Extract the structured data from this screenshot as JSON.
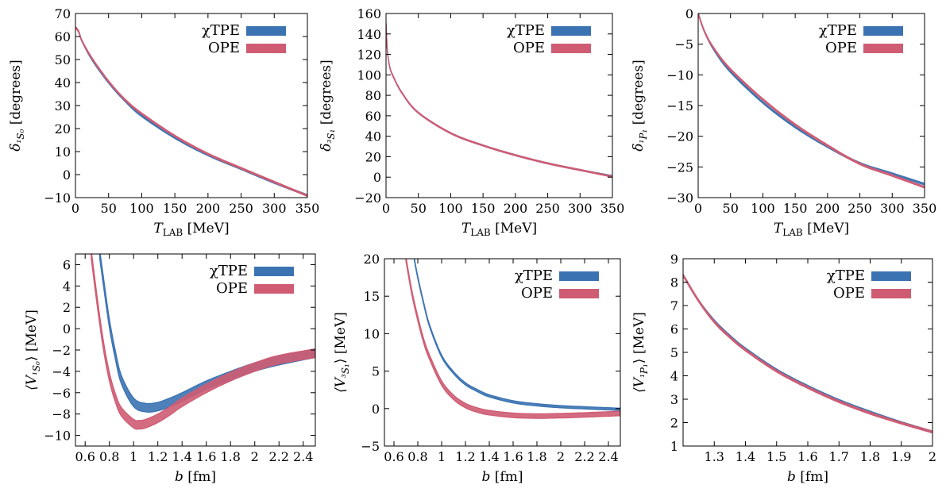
{
  "colors": {
    "chi_tpe": "#3b73b2",
    "ope": "#cf5c73"
  },
  "chart_data": [
    {
      "type": "line",
      "xlabel": "T_LAB [MeV]",
      "ylabel": "δ_{1S0} [degrees]",
      "xlim": [
        0,
        350
      ],
      "ylim": [
        -10,
        70
      ],
      "xticks": [
        0,
        50,
        100,
        150,
        200,
        250,
        300,
        350
      ],
      "xtick_labels": [
        "0",
        "50",
        "100",
        "150",
        "200",
        "250",
        "300",
        "350"
      ],
      "yticks": [
        -10,
        0,
        10,
        20,
        30,
        40,
        50,
        60,
        70
      ],
      "ytick_labels": [
        "−10",
        "0",
        "10",
        "20",
        "30",
        "40",
        "50",
        "60",
        "70"
      ],
      "legend": "top-right",
      "series": [
        {
          "name": "χTPE",
          "color": "chi_tpe",
          "x": [
            0,
            5,
            10,
            25,
            50,
            75,
            100,
            150,
            200,
            250,
            300,
            350
          ],
          "y": [
            64,
            62,
            58,
            50,
            40,
            32,
            25.5,
            16,
            8.5,
            2.5,
            -3.5,
            -9
          ],
          "band": 0.6
        },
        {
          "name": "OPE",
          "color": "ope",
          "x": [
            0,
            5,
            10,
            25,
            50,
            75,
            100,
            150,
            200,
            250,
            300,
            350
          ],
          "y": [
            64,
            62,
            58,
            50.5,
            40.5,
            32.5,
            26.5,
            16.8,
            9,
            2.8,
            -3.2,
            -9.2
          ],
          "band": 0.6
        }
      ]
    },
    {
      "type": "line",
      "xlabel": "T_LAB [MeV]",
      "ylabel": "δ_{3S1} [degrees]",
      "xlim": [
        0,
        350
      ],
      "ylim": [
        -20,
        160
      ],
      "xticks": [
        0,
        50,
        100,
        150,
        200,
        250,
        300,
        350
      ],
      "xtick_labels": [
        "0",
        "50",
        "100",
        "150",
        "200",
        "250",
        "300",
        "350"
      ],
      "yticks": [
        -20,
        0,
        20,
        40,
        60,
        80,
        100,
        120,
        140,
        160
      ],
      "ytick_labels": [
        "−20",
        "0",
        "20",
        "40",
        "60",
        "80",
        "100",
        "120",
        "140",
        "160"
      ],
      "legend": "top-right",
      "series": [
        {
          "name": "χTPE",
          "color": "chi_tpe",
          "x": [
            0,
            2,
            5,
            10,
            25,
            50,
            100,
            150,
            200,
            250,
            300,
            350
          ],
          "y": [
            150,
            125,
            110,
            100,
            82,
            63,
            43,
            31,
            21.5,
            13.5,
            7,
            1
          ],
          "band": 1
        },
        {
          "name": "OPE",
          "color": "ope",
          "x": [
            0,
            2,
            5,
            10,
            25,
            50,
            100,
            150,
            200,
            250,
            300,
            350
          ],
          "y": [
            150,
            125,
            110,
            100,
            82,
            63,
            43,
            31,
            21.5,
            13.5,
            7,
            0.5
          ],
          "band": 1
        }
      ]
    },
    {
      "type": "line",
      "xlabel": "T_LAB [MeV]",
      "ylabel": "δ_{1P1} [degrees]",
      "xlim": [
        0,
        350
      ],
      "ylim": [
        -30,
        0
      ],
      "xticks": [
        0,
        50,
        100,
        150,
        200,
        250,
        300,
        350
      ],
      "xtick_labels": [
        "0",
        "50",
        "100",
        "150",
        "200",
        "250",
        "300",
        "350"
      ],
      "yticks": [
        -30,
        -25,
        -20,
        -15,
        -10,
        -5,
        0
      ],
      "ytick_labels": [
        "−30",
        "−25",
        "−20",
        "−15",
        "−10",
        "−5",
        "0"
      ],
      "legend": "top-right",
      "series": [
        {
          "name": "χTPE",
          "color": "chi_tpe",
          "x": [
            0,
            10,
            25,
            50,
            100,
            150,
            200,
            250,
            300,
            350
          ],
          "y": [
            0,
            -3,
            -6,
            -9.5,
            -14.5,
            -18.5,
            -21.7,
            -24.4,
            -26.1,
            -27.8
          ],
          "band": 0.25
        },
        {
          "name": "OPE",
          "color": "ope",
          "x": [
            0,
            10,
            25,
            50,
            100,
            150,
            200,
            250,
            300,
            350
          ],
          "y": [
            0,
            -3,
            -5.8,
            -9.1,
            -14,
            -18.1,
            -21.5,
            -24.5,
            -26.4,
            -28.3
          ],
          "band": 0.25
        }
      ]
    },
    {
      "type": "line",
      "xlabel": "b [fm]",
      "ylabel": "⟨V_{1S0}⟩ [MeV]",
      "xlim": [
        0.52,
        2.5
      ],
      "ylim": [
        -11,
        7
      ],
      "xticks": [
        0.6,
        0.8,
        1,
        1.2,
        1.4,
        1.6,
        1.8,
        2,
        2.2,
        2.4
      ],
      "xtick_labels": [
        "0.6",
        "0.8",
        "1",
        "1.2",
        "1.4",
        "1.6",
        "1.8",
        "2",
        "2.2",
        "2.4"
      ],
      "yticks": [
        -10,
        -8,
        -6,
        -4,
        -2,
        0,
        2,
        4,
        6
      ],
      "ytick_labels": [
        "−10",
        "−8",
        "−6",
        "−4",
        "−2",
        "0",
        "2",
        "4",
        "6"
      ],
      "legend": "top-right",
      "series": [
        {
          "name": "χTPE",
          "color": "chi_tpe",
          "x": [
            0.72,
            0.75,
            0.8,
            0.85,
            0.9,
            1.0,
            1.1,
            1.2,
            1.3,
            1.4,
            1.6,
            1.8,
            2.0,
            2.2,
            2.5
          ],
          "y": [
            7,
            4.5,
            0.5,
            -2.5,
            -4.8,
            -6.9,
            -7.4,
            -7.3,
            -6.9,
            -6.4,
            -5.3,
            -4.4,
            -3.6,
            -3.0,
            -2.3
          ],
          "band": 0.8
        },
        {
          "name": "OPE",
          "color": "ope",
          "x": [
            0.65,
            0.7,
            0.75,
            0.8,
            0.85,
            0.9,
            1.0,
            1.05,
            1.1,
            1.2,
            1.3,
            1.4,
            1.6,
            1.8,
            2.0,
            2.2,
            2.5
          ],
          "y": [
            7,
            2.5,
            -1.5,
            -4.5,
            -6.5,
            -7.8,
            -8.9,
            -9.0,
            -8.9,
            -8.4,
            -7.7,
            -6.9,
            -5.6,
            -4.5,
            -3.6,
            -2.9,
            -2.3
          ],
          "band": 0.8
        }
      ]
    },
    {
      "type": "line",
      "xlabel": "b [fm]",
      "ylabel": "⟨V_{3S1}⟩ [MeV]",
      "xlim": [
        0.52,
        2.5
      ],
      "ylim": [
        -5,
        20
      ],
      "xticks": [
        0.6,
        0.8,
        1,
        1.2,
        1.4,
        1.6,
        1.8,
        2,
        2.2,
        2.4
      ],
      "xtick_labels": [
        "0.6",
        "0.8",
        "1",
        "1.2",
        "1.4",
        "1.6",
        "1.8",
        "2",
        "2.2",
        "2.4"
      ],
      "yticks": [
        -5,
        0,
        5,
        10,
        15,
        20
      ],
      "ytick_labels": [
        "−5",
        "0",
        "5",
        "10",
        "15",
        "20"
      ],
      "legend": "top-right",
      "series": [
        {
          "name": "χTPE",
          "color": "chi_tpe",
          "x": [
            0.77,
            0.8,
            0.85,
            0.9,
            1.0,
            1.1,
            1.2,
            1.3,
            1.4,
            1.6,
            1.8,
            2.0,
            2.2,
            2.5
          ],
          "y": [
            20,
            17.5,
            14,
            11,
            7,
            4.8,
            3.3,
            2.4,
            1.7,
            0.9,
            0.5,
            0.25,
            0.1,
            -0.1
          ],
          "band": 0.3
        },
        {
          "name": "OPE",
          "color": "ope",
          "x": [
            0.7,
            0.75,
            0.8,
            0.85,
            0.9,
            1.0,
            1.1,
            1.2,
            1.3,
            1.4,
            1.6,
            1.8,
            2.0,
            2.2,
            2.5
          ],
          "y": [
            20,
            15.5,
            12,
            9,
            6.8,
            3.4,
            1.5,
            0.4,
            -0.2,
            -0.55,
            -0.9,
            -1.0,
            -0.95,
            -0.85,
            -0.65
          ],
          "band": 0.6
        }
      ]
    },
    {
      "type": "line",
      "xlabel": "b [fm]",
      "ylabel": "⟨V_{1P1}⟩ [MeV]",
      "xlim": [
        1.2,
        2.0
      ],
      "ylim": [
        1,
        9
      ],
      "xticks": [
        1.3,
        1.4,
        1.5,
        1.6,
        1.7,
        1.8,
        1.9,
        2.0
      ],
      "xtick_labels": [
        "1.3",
        "1.4",
        "1.5",
        "1.6",
        "1.7",
        "1.8",
        "1.9",
        "2"
      ],
      "yticks": [
        1,
        2,
        3,
        4,
        5,
        6,
        7,
        8,
        9
      ],
      "ytick_labels": [
        "1",
        "2",
        "3",
        "4",
        "5",
        "6",
        "7",
        "8",
        "9"
      ],
      "legend": "top-right",
      "series": [
        {
          "name": "χTPE",
          "color": "chi_tpe",
          "x": [
            1.2,
            1.25,
            1.3,
            1.35,
            1.4,
            1.5,
            1.6,
            1.7,
            1.8,
            1.9,
            2.0
          ],
          "y": [
            8.3,
            7.2,
            6.35,
            5.7,
            5.15,
            4.25,
            3.55,
            2.95,
            2.45,
            2.0,
            1.6
          ],
          "band": 0.08
        },
        {
          "name": "OPE",
          "color": "ope",
          "x": [
            1.2,
            1.25,
            1.3,
            1.35,
            1.4,
            1.5,
            1.6,
            1.7,
            1.8,
            1.9,
            2.0
          ],
          "y": [
            8.3,
            7.2,
            6.3,
            5.65,
            5.1,
            4.2,
            3.5,
            2.9,
            2.4,
            1.98,
            1.6
          ],
          "band": 0.08
        }
      ]
    }
  ]
}
